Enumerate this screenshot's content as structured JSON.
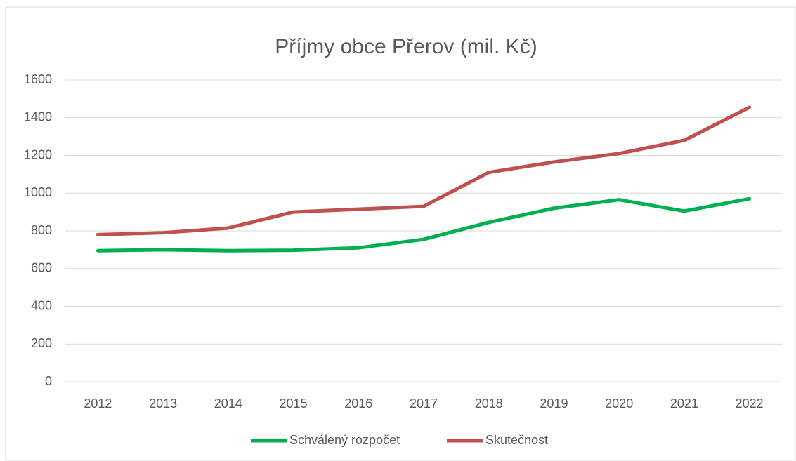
{
  "chart_data": {
    "type": "line",
    "title": "Příjmy obce Přerov (mil. Kč)",
    "categories": [
      "2012",
      "2013",
      "2014",
      "2015",
      "2016",
      "2017",
      "2018",
      "2019",
      "2020",
      "2021",
      "2022"
    ],
    "series": [
      {
        "name": "Schválený rozpočet",
        "color": "#00b050",
        "values": [
          695,
          700,
          695,
          697,
          710,
          755,
          845,
          920,
          965,
          905,
          970
        ]
      },
      {
        "name": "Skutečnost",
        "color": "#c0504d",
        "values": [
          780,
          790,
          815,
          900,
          915,
          930,
          1110,
          1165,
          1210,
          1280,
          1455
        ]
      }
    ],
    "ylim": [
      0,
      1600
    ],
    "yticks": [
      0,
      200,
      400,
      600,
      800,
      1000,
      1200,
      1400,
      1600
    ],
    "grid": true,
    "legend": "bottom"
  }
}
